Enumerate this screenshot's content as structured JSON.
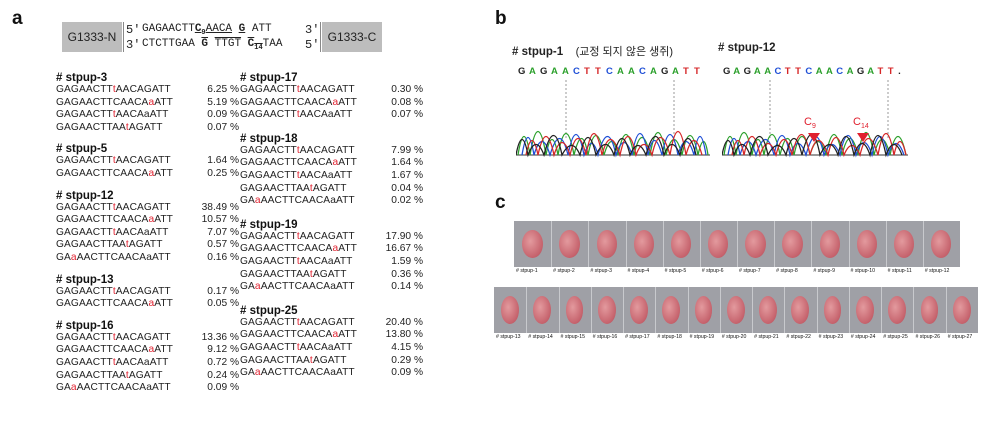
{
  "panel_a": {
    "letter": "a",
    "left_box": "G1333-N",
    "right_box": "G1333-C",
    "top_prime_left": "5'",
    "top_prime_right": "3'",
    "bot_prime_left": "3'",
    "bot_prime_right": "5'",
    "top_seq_a": "GAGAACTT",
    "top_seq_c": "C",
    "top_seq_c_sub": "9",
    "top_seq_b": "AACA",
    "top_seq_g": "G",
    "top_seq_end": "ATT",
    "bot_seq_a": "CTCTTGAA",
    "bot_seq_g": "G",
    "bot_seq_b": "TTGT",
    "bot_seq_c": "C",
    "bot_seq_c_sub": "14",
    "bot_seq_end": "TAA",
    "groups_left": [
      {
        "title": "# stpup-3",
        "rows": [
          {
            "pre": "GAGAACTT",
            "red": "t",
            "post": "AACAGATT",
            "pct": "6.25 %"
          },
          {
            "pre": "GAGAACTTCAACA",
            "red": "a",
            "post": "ATT",
            "pct": "5.19 %"
          },
          {
            "pre": "GAGAACTT",
            "red": "t",
            "post": "AACAaATT",
            "pct": "0.09 %"
          },
          {
            "pre": "GAGAACTTAA",
            "red": "t",
            "post": "AGATT",
            "pct": "0.07 %"
          }
        ]
      },
      {
        "title": "# stpup-5",
        "rows": [
          {
            "pre": "GAGAACTT",
            "red": "t",
            "post": "AACAGATT",
            "pct": "1.64 %"
          },
          {
            "pre": "GAGAACTTCAACA",
            "red": "a",
            "post": "ATT",
            "pct": "0.25 %"
          }
        ]
      },
      {
        "title": "# stpup-12",
        "rows": [
          {
            "pre": "GAGAACTT",
            "red": "t",
            "post": "AACAGATT",
            "pct": "38.49 %"
          },
          {
            "pre": "GAGAACTTCAACA",
            "red": "a",
            "post": "ATT",
            "pct": "10.57 %"
          },
          {
            "pre": "GAGAACTT",
            "red": "t",
            "post": "AACAaATT",
            "pct": "7.07 %"
          },
          {
            "pre": "GAGAACTTAA",
            "red": "t",
            "post": "AGATT",
            "pct": "0.57 %"
          },
          {
            "pre": "GA",
            "red": "a",
            "post": "AACTTCAACAaATT",
            "pct": "0.16 %"
          }
        ]
      },
      {
        "title": "# stpup-13",
        "rows": [
          {
            "pre": "GAGAACTT",
            "red": "t",
            "post": "AACAGATT",
            "pct": "0.17 %"
          },
          {
            "pre": "GAGAACTTCAACA",
            "red": "a",
            "post": "ATT",
            "pct": "0.05 %"
          }
        ]
      },
      {
        "title": "# stpup-16",
        "rows": [
          {
            "pre": "GAGAACTT",
            "red": "t",
            "post": "AACAGATT",
            "pct": "13.36 %"
          },
          {
            "pre": "GAGAACTTCAACA",
            "red": "a",
            "post": "ATT",
            "pct": "9.12 %"
          },
          {
            "pre": "GAGAACTT",
            "red": "t",
            "post": "AACAaATT",
            "pct": "0.72 %"
          },
          {
            "pre": "GAGAACTTAA",
            "red": "t",
            "post": "AGATT",
            "pct": "0.24 %"
          },
          {
            "pre": "GA",
            "red": "a",
            "post": "AACTTCAACAaATT",
            "pct": "0.09 %"
          }
        ]
      }
    ],
    "groups_right": [
      {
        "title": "# stpup-17",
        "rows": [
          {
            "pre": "GAGAACTT",
            "red": "t",
            "post": "AACAGATT",
            "pct": "0.30 %"
          },
          {
            "pre": "GAGAACTTCAACA",
            "red": "a",
            "post": "ATT",
            "pct": "0.08 %"
          },
          {
            "pre": "GAGAACTT",
            "red": "t",
            "post": "AACAaATT",
            "pct": "0.07 %"
          }
        ]
      },
      {
        "title": "# stpup-18",
        "rows": [
          {
            "pre": "GAGAACTT",
            "red": "t",
            "post": "AACAGATT",
            "pct": "7.99 %"
          },
          {
            "pre": "GAGAACTTCAACA",
            "red": "a",
            "post": "ATT",
            "pct": "1.64 %"
          },
          {
            "pre": "GAGAACTT",
            "red": "t",
            "post": "AACAaATT",
            "pct": "1.67 %"
          },
          {
            "pre": "GAGAACTTAA",
            "red": "t",
            "post": "AGATT",
            "pct": "0.04 %"
          },
          {
            "pre": "GA",
            "red": "a",
            "post": "AACTTCAACAaATT",
            "pct": "0.02 %"
          }
        ]
      },
      {
        "title": "# stpup-19",
        "rows": [
          {
            "pre": "GAGAACTT",
            "red": "t",
            "post": "AACAGATT",
            "pct": "17.90 %"
          },
          {
            "pre": "GAGAACTTCAACA",
            "red": "a",
            "post": "ATT",
            "pct": "16.67 %"
          },
          {
            "pre": "GAGAACTT",
            "red": "t",
            "post": "AACAaATT",
            "pct": "1.59 %"
          },
          {
            "pre": "GAGAACTTAA",
            "red": "t",
            "post": "AGATT",
            "pct": "0.36 %"
          },
          {
            "pre": "GA",
            "red": "a",
            "post": "AACTTCAACAaATT",
            "pct": "0.14 %"
          }
        ]
      },
      {
        "title": "# stpup-25",
        "rows": [
          {
            "pre": "GAGAACTT",
            "red": "t",
            "post": "AACAGATT",
            "pct": "20.40 %"
          },
          {
            "pre": "GAGAACTTCAACA",
            "red": "a",
            "post": "ATT",
            "pct": "13.80 %"
          },
          {
            "pre": "GAGAACTT",
            "red": "t",
            "post": "AACAaATT",
            "pct": "4.15 %"
          },
          {
            "pre": "GAGAACTTAA",
            "red": "t",
            "post": "AGATT",
            "pct": "0.29 %"
          },
          {
            "pre": "GA",
            "red": "a",
            "post": "AACTTCAACAaATT",
            "pct": "0.09 %"
          }
        ]
      }
    ]
  },
  "panel_b": {
    "letter": "b",
    "left_title": "# stpup-1",
    "left_subtitle": "(교정 되지 않은 생쥐)",
    "right_title": "# stpup-12",
    "seq_letters": [
      "G",
      "A",
      "G",
      "A",
      "A",
      "C",
      "T",
      "T",
      "C",
      "A",
      "A",
      "C",
      "A",
      "G",
      "A",
      "T",
      "T"
    ],
    "right_seq_letters": [
      "G",
      "A",
      "G",
      "A",
      "A",
      "C",
      "T",
      "T",
      "C",
      "A",
      "A",
      "C",
      "A",
      "G",
      "A",
      "T",
      "T",
      "."
    ],
    "marker_c9": "C",
    "marker_c9_sub": "9",
    "marker_c14": "C",
    "marker_c14_sub": "14",
    "colors": {
      "G": "#222222",
      "A": "#2ca02c",
      "C": "#1f4fd6",
      "T": "#d62728",
      "marker": "#e0202e"
    }
  },
  "panel_c": {
    "letter": "c",
    "row1_labels": [
      "# stpup-1",
      "# stpup-2",
      "# stpup-3",
      "# stpup-4",
      "# stpup-5",
      "# stpup-6",
      "# stpup-7",
      "# stpup-8",
      "# stpup-9",
      "# stpup-10",
      "# stpup-11",
      "# stpup-12"
    ],
    "row2_labels": [
      "# stpup-13",
      "# stpup-14",
      "# stpup-15",
      "# stpup-16",
      "# stpup-17",
      "# stpup-18",
      "# stpup-19",
      "# stpup-20",
      "# stpup-21",
      "# stpup-22",
      "# stpup-23",
      "# stpup-24",
      "# stpup-25",
      "# stpup-26",
      "# stpup-27"
    ]
  }
}
